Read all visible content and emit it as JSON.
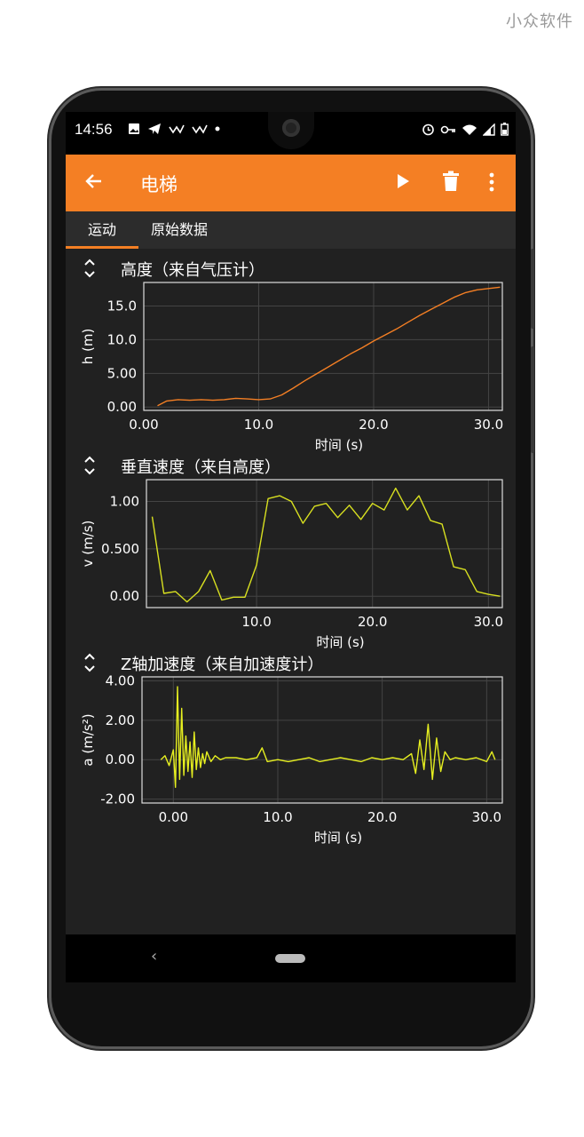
{
  "watermark": "小众软件",
  "status_bar": {
    "time": "14:56"
  },
  "app_bar": {
    "title": "电梯"
  },
  "tabs": [
    {
      "label": "运动",
      "active": true
    },
    {
      "label": "原始数据",
      "active": false
    }
  ],
  "colors": {
    "accent": "#f47f24",
    "altitude_line": "#f47f24",
    "velocity_line": "#d8e020",
    "accel_line": "#e6ef20",
    "plot_bg": "#212121"
  },
  "chart_data": [
    {
      "type": "line",
      "title": "高度（来自气压计）",
      "xlabel": "时间 (s)",
      "ylabel": "h (m)",
      "xlim": [
        0,
        31.2
      ],
      "ylim": [
        -0.5,
        18.5
      ],
      "x_ticks": [
        "0.00",
        "10.0",
        "20.0",
        "30.0"
      ],
      "x_tick_values": [
        0,
        10,
        20,
        30
      ],
      "y_ticks": [
        "0.00",
        "5.00",
        "10.0",
        "15.0"
      ],
      "y_tick_values": [
        0,
        5,
        10,
        15
      ],
      "series": [
        {
          "x": [
            1.2,
            2.0,
            3.0,
            4.0,
            5.0,
            6.0,
            7.0,
            8.0,
            9.0,
            10.0,
            11.0,
            12.0,
            13.0,
            14.0,
            15.0,
            16.0,
            17.0,
            18.0,
            19.0,
            20.0,
            21.0,
            22.0,
            23.0,
            24.0,
            25.0,
            26.0,
            27.0,
            28.0,
            29.0,
            30.0,
            31.0
          ],
          "y": [
            0.2,
            0.9,
            1.1,
            1.0,
            1.1,
            1.0,
            1.1,
            1.3,
            1.2,
            1.1,
            1.2,
            1.8,
            2.8,
            3.9,
            4.9,
            5.9,
            6.9,
            7.9,
            8.8,
            9.8,
            10.7,
            11.6,
            12.6,
            13.6,
            14.5,
            15.4,
            16.3,
            17.0,
            17.4,
            17.6,
            17.8
          ]
        }
      ]
    },
    {
      "type": "line",
      "title": "垂直速度（来自高度）",
      "xlabel": "时间 (s)",
      "ylabel": "v (m/s)",
      "xlim": [
        0.5,
        31.2
      ],
      "ylim": [
        -0.12,
        1.23
      ],
      "x_ticks": [
        "10.0",
        "20.0",
        "30.0"
      ],
      "x_tick_values": [
        10,
        20,
        30
      ],
      "y_ticks": [
        "0.00",
        "0.500",
        "1.00"
      ],
      "y_tick_values": [
        0,
        0.5,
        1
      ],
      "series": [
        {
          "x": [
            1.0,
            2.0,
            3.0,
            4.0,
            5.0,
            6.0,
            7.0,
            8.0,
            9.0,
            10.0,
            11.0,
            12.0,
            13.0,
            14.0,
            15.0,
            16.0,
            17.0,
            18.0,
            19.0,
            20.0,
            21.0,
            22.0,
            23.0,
            24.0,
            25.0,
            26.0,
            27.0,
            28.0,
            29.0,
            30.0,
            31.0
          ],
          "y": [
            0.84,
            0.03,
            0.05,
            -0.06,
            0.05,
            0.27,
            -0.04,
            -0.01,
            -0.01,
            0.33,
            1.03,
            1.06,
            1.0,
            0.77,
            0.95,
            0.98,
            0.83,
            0.96,
            0.81,
            0.98,
            0.91,
            1.14,
            0.91,
            1.06,
            0.8,
            0.76,
            0.31,
            0.28,
            0.05,
            0.02,
            0.0
          ]
        }
      ]
    },
    {
      "type": "line",
      "title": "Z轴加速度（来自加速度计）",
      "xlabel": "时间 (s)",
      "ylabel": "a (m/s²)",
      "xlim": [
        -3,
        31.5
      ],
      "ylim": [
        -2.2,
        4.2
      ],
      "x_ticks": [
        "0.00",
        "10.0",
        "20.0",
        "30.0"
      ],
      "x_tick_values": [
        0,
        10,
        20,
        30
      ],
      "y_ticks": [
        "-2.00",
        "0.00",
        "2.00",
        "4.00"
      ],
      "y_tick_values": [
        -2,
        0,
        2,
        4
      ],
      "series": [
        {
          "x": [
            -1.2,
            -0.8,
            -0.4,
            0.0,
            0.2,
            0.4,
            0.6,
            0.8,
            1.0,
            1.2,
            1.4,
            1.6,
            1.8,
            2.0,
            2.2,
            2.4,
            2.6,
            2.8,
            3.0,
            3.2,
            3.6,
            4.0,
            4.5,
            5.0,
            6.0,
            7.0,
            8.0,
            8.5,
            9.0,
            10.0,
            11.0,
            12.0,
            13.0,
            14.0,
            15.0,
            16.0,
            17.0,
            18.0,
            19.0,
            20.0,
            21.0,
            22.0,
            22.8,
            23.2,
            23.6,
            24.0,
            24.4,
            24.8,
            25.2,
            25.6,
            26.0,
            26.5,
            27.0,
            28.0,
            29.0,
            30.0,
            30.5,
            30.8
          ],
          "y": [
            0.0,
            0.2,
            -0.3,
            0.5,
            -1.4,
            3.7,
            -1.0,
            2.6,
            -0.8,
            1.2,
            -0.6,
            0.9,
            -0.9,
            1.4,
            -0.5,
            0.6,
            -0.4,
            0.3,
            -0.2,
            0.4,
            -0.1,
            0.2,
            0.0,
            0.1,
            0.1,
            0.0,
            0.1,
            0.6,
            -0.1,
            0.0,
            -0.1,
            0.0,
            0.1,
            -0.1,
            0.0,
            0.1,
            0.0,
            -0.1,
            0.1,
            0.0,
            0.1,
            0.0,
            0.3,
            -0.7,
            1.0,
            -0.5,
            1.8,
            -1.0,
            1.1,
            -0.6,
            0.4,
            0.0,
            0.1,
            0.0,
            0.1,
            -0.1,
            0.4,
            0.0
          ]
        }
      ]
    }
  ]
}
